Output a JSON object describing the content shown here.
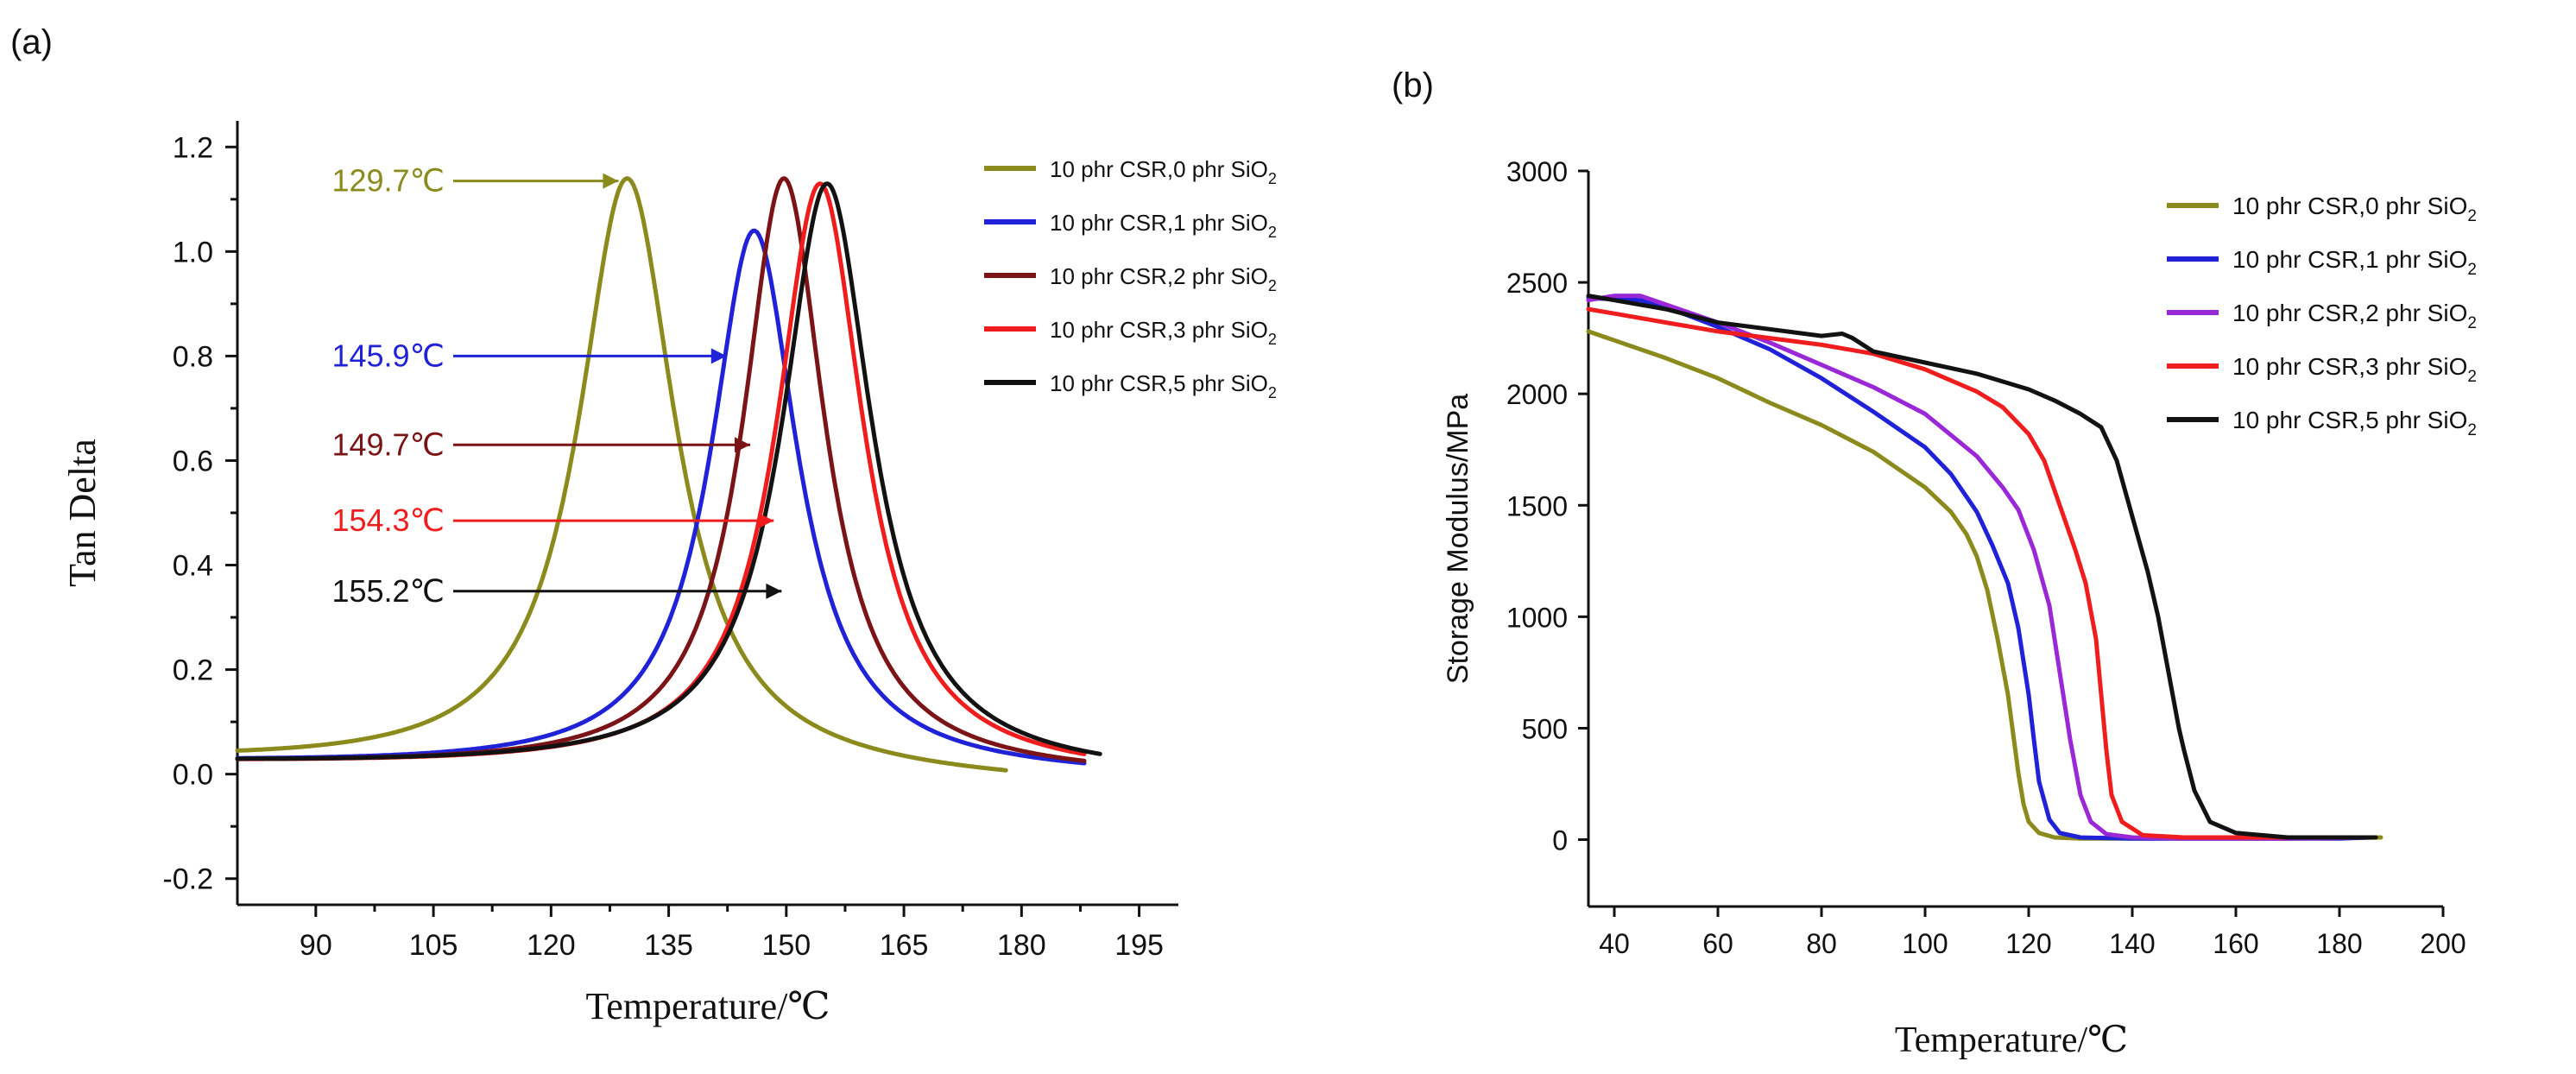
{
  "chart_data": [
    {
      "type": "line",
      "panel_label": "(a)",
      "title": "",
      "xlabel": "Temperature/℃",
      "ylabel": "Tan Delta",
      "xlim": [
        80,
        200
      ],
      "ylim": [
        -0.25,
        1.25
      ],
      "x_ticks": [
        90,
        105,
        120,
        135,
        150,
        165,
        180,
        195
      ],
      "y_ticks": [
        -0.2,
        0.0,
        0.2,
        0.4,
        0.6,
        0.8,
        1.0,
        1.2
      ],
      "y_tick_labels": [
        "-0.2",
        "0.0",
        "0.2",
        "0.4",
        "0.6",
        "0.8",
        "1.0",
        "1.2"
      ],
      "grid": false,
      "legend_position": "top-right",
      "series": [
        {
          "name": "10 phr CSR,0 phr SiO",
          "sub": "2",
          "color": "#8b8a1c",
          "peak_x": 129.7,
          "peak_y": 1.14,
          "width": 9.5,
          "base_start": 0.02,
          "base_end": -0.02,
          "x_start": 80,
          "x_end": 178
        },
        {
          "name": "10 phr CSR,1 phr SiO",
          "sub": "2",
          "color": "#1f22d6",
          "peak_x": 145.9,
          "peak_y": 1.04,
          "width": 8.5,
          "base_start": 0.02,
          "base_end": -0.005,
          "x_start": 80,
          "x_end": 188
        },
        {
          "name": "10 phr CSR,2 phr SiO",
          "sub": "2",
          "color": "#7a1416",
          "peak_x": 149.7,
          "peak_y": 1.14,
          "width": 8.0,
          "base_start": 0.02,
          "base_end": -0.005,
          "x_start": 80,
          "x_end": 188
        },
        {
          "name": "10 phr CSR,3 phr SiO",
          "sub": "2",
          "color": "#ef1d1d",
          "peak_x": 154.3,
          "peak_y": 1.13,
          "width": 8.5,
          "base_start": 0.02,
          "base_end": -0.005,
          "x_start": 80,
          "x_end": 188
        },
        {
          "name": "10 phr CSR,5 phr SiO",
          "sub": "2",
          "color": "#121212",
          "peak_x": 155.2,
          "peak_y": 1.13,
          "width": 8.8,
          "base_start": 0.02,
          "base_end": -0.005,
          "x_start": 80,
          "x_end": 190
        }
      ],
      "annotations": [
        {
          "text": "129.7℃",
          "color": "#8b8a1c",
          "arrow_to_x": 129.7,
          "arrow_to_y": 1.135,
          "label_y": 1.135
        },
        {
          "text": "145.9℃",
          "color": "#1f22d6",
          "arrow_to_x": 143.5,
          "arrow_to_y": 0.8,
          "label_y": 0.8
        },
        {
          "text": "149.7℃",
          "color": "#7a1416",
          "arrow_to_x": 146.5,
          "arrow_to_y": 0.63,
          "label_y": 0.63
        },
        {
          "text": "154.3℃",
          "color": "#ef1d1d",
          "arrow_to_x": 149.5,
          "arrow_to_y": 0.485,
          "label_y": 0.485
        },
        {
          "text": "155.2℃",
          "color": "#121212",
          "arrow_to_x": 150.5,
          "arrow_to_y": 0.35,
          "label_y": 0.35
        }
      ]
    },
    {
      "type": "line",
      "panel_label": "(b)",
      "title": "",
      "xlabel": "Temperature/℃",
      "ylabel": "Storage Modulus/MPa",
      "xlim": [
        35,
        200
      ],
      "ylim": [
        -300,
        3000
      ],
      "x_ticks": [
        40,
        60,
        80,
        100,
        120,
        140,
        160,
        180,
        200
      ],
      "y_ticks": [
        0,
        500,
        1000,
        1500,
        2000,
        2500,
        3000
      ],
      "grid": false,
      "legend_position": "top-right",
      "series": [
        {
          "name": "10 phr CSR,0 phr SiO",
          "sub": "2",
          "color": "#8b8a1c",
          "x": [
            35,
            50,
            60,
            70,
            80,
            90,
            100,
            105,
            108,
            110,
            112,
            114,
            116,
            118,
            119,
            120,
            122,
            125,
            130,
            140,
            150,
            160,
            170,
            180,
            188
          ],
          "y": [
            2280,
            2160,
            2070,
            1960,
            1860,
            1740,
            1580,
            1470,
            1370,
            1270,
            1120,
            900,
            650,
            300,
            160,
            80,
            30,
            10,
            5,
            5,
            5,
            5,
            5,
            8,
            10
          ]
        },
        {
          "name": "10 phr CSR,1 phr SiO",
          "sub": "2",
          "color": "#1f22d6",
          "x": [
            35,
            45,
            50,
            60,
            70,
            80,
            90,
            100,
            105,
            110,
            113,
            116,
            118,
            120,
            121,
            122,
            124,
            126,
            130,
            140,
            150,
            160,
            170,
            180,
            186
          ],
          "y": [
            2430,
            2420,
            2390,
            2300,
            2200,
            2070,
            1920,
            1760,
            1640,
            1470,
            1320,
            1150,
            950,
            650,
            450,
            260,
            90,
            30,
            10,
            5,
            5,
            5,
            5,
            5,
            10
          ]
        },
        {
          "name": "10 phr CSR,2 phr SiO",
          "sub": "2",
          "color": "#9b28d6",
          "x": [
            35,
            40,
            45,
            50,
            60,
            70,
            80,
            90,
            100,
            110,
            115,
            118,
            121,
            124,
            126,
            128,
            130,
            132,
            135,
            140,
            150,
            160,
            170,
            180,
            185
          ],
          "y": [
            2420,
            2440,
            2440,
            2400,
            2320,
            2230,
            2130,
            2030,
            1910,
            1720,
            1580,
            1480,
            1300,
            1050,
            750,
            450,
            200,
            80,
            25,
            10,
            5,
            5,
            5,
            8,
            10
          ]
        },
        {
          "name": "10 phr CSR,3 phr SiO",
          "sub": "2",
          "color": "#ef1d1d",
          "x": [
            35,
            40,
            50,
            60,
            70,
            80,
            90,
            100,
            110,
            115,
            120,
            123,
            126,
            129,
            131,
            133,
            134,
            135,
            136,
            138,
            142,
            150,
            160,
            170
          ],
          "y": [
            2380,
            2360,
            2320,
            2280,
            2250,
            2220,
            2180,
            2110,
            2010,
            1940,
            1820,
            1700,
            1500,
            1300,
            1150,
            900,
            650,
            400,
            200,
            80,
            20,
            10,
            10,
            10
          ]
        },
        {
          "name": "10 phr CSR,5 phr SiO",
          "sub": "2",
          "color": "#121212",
          "x": [
            35,
            40,
            50,
            60,
            70,
            80,
            84,
            86,
            88,
            90,
            100,
            110,
            120,
            125,
            130,
            134,
            137,
            140,
            143,
            145,
            147,
            149,
            150,
            152,
            155,
            160,
            170,
            180,
            187
          ],
          "y": [
            2440,
            2420,
            2380,
            2320,
            2290,
            2260,
            2270,
            2250,
            2220,
            2190,
            2140,
            2090,
            2020,
            1970,
            1910,
            1850,
            1700,
            1450,
            1200,
            1000,
            750,
            500,
            400,
            220,
            80,
            30,
            10,
            10,
            10
          ]
        }
      ]
    }
  ]
}
